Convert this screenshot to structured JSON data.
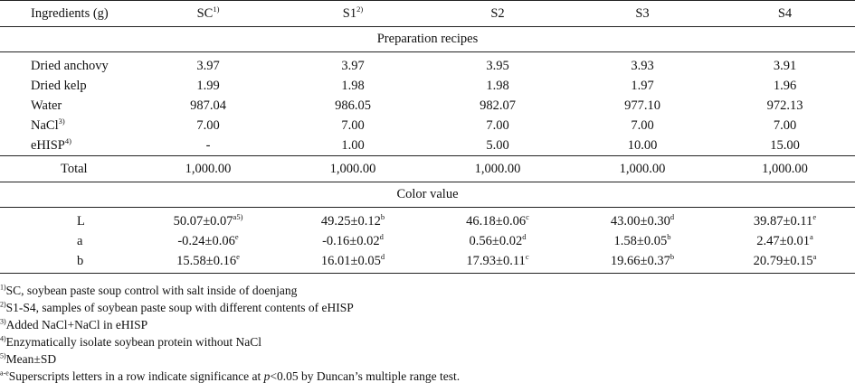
{
  "table": {
    "header": {
      "col0": "Ingredients (g)",
      "cols": [
        {
          "label": "SC",
          "sup": "1)"
        },
        {
          "label": "S1",
          "sup": "2)"
        },
        {
          "label": "S2",
          "sup": ""
        },
        {
          "label": "S3",
          "sup": ""
        },
        {
          "label": "S4",
          "sup": ""
        }
      ]
    },
    "section_recipes": "Preparation recipes",
    "recipes": [
      {
        "name": "Dried anchovy",
        "sup": "",
        "values": [
          "3.97",
          "3.97",
          "3.95",
          "3.93",
          "3.91"
        ]
      },
      {
        "name": "Dried kelp",
        "sup": "",
        "values": [
          "1.99",
          "1.98",
          "1.98",
          "1.97",
          "1.96"
        ]
      },
      {
        "name": "Water",
        "sup": "",
        "values": [
          "987.04",
          "986.05",
          "982.07",
          "977.10",
          "972.13"
        ]
      },
      {
        "name": "NaCl",
        "sup": "3)",
        "values": [
          "7.00",
          "7.00",
          "7.00",
          "7.00",
          "7.00"
        ]
      },
      {
        "name": "eHISP",
        "sup": "4)",
        "values": [
          "-",
          "1.00",
          "5.00",
          "10.00",
          "15.00"
        ]
      }
    ],
    "total": {
      "name": "Total",
      "values": [
        "1,000.00",
        "1,000.00",
        "1,000.00",
        "1,000.00",
        "1,000.00"
      ]
    },
    "section_color": "Color value",
    "color": [
      {
        "name": "L",
        "values": [
          {
            "v": "50.07±0.07",
            "s": "a5)"
          },
          {
            "v": "49.25±0.12",
            "s": "b"
          },
          {
            "v": "46.18±0.06",
            "s": "c"
          },
          {
            "v": "43.00±0.30",
            "s": "d"
          },
          {
            "v": "39.87±0.11",
            "s": "e"
          }
        ]
      },
      {
        "name": "a",
        "values": [
          {
            "v": "-0.24±0.06",
            "s": "e"
          },
          {
            "v": "-0.16±0.02",
            "s": "d"
          },
          {
            "v": "0.56±0.02",
            "s": "d"
          },
          {
            "v": "1.58±0.05",
            "s": "b"
          },
          {
            "v": "2.47±0.01",
            "s": "a"
          }
        ]
      },
      {
        "name": "b",
        "values": [
          {
            "v": "15.58±0.16",
            "s": "e"
          },
          {
            "v": "16.01±0.05",
            "s": "d"
          },
          {
            "v": "17.93±0.11",
            "s": "c"
          },
          {
            "v": "19.66±0.37",
            "s": "b"
          },
          {
            "v": "20.79±0.15",
            "s": "a"
          }
        ]
      }
    ]
  },
  "footnotes": [
    {
      "mark": "1)",
      "text": "SC, soybean paste soup control with salt inside of doenjang"
    },
    {
      "mark": "2)",
      "text": "S1-S4, samples of soybean paste soup with different contents of eHISP"
    },
    {
      "mark": "3)",
      "text": "Added NaCl+NaCl in eHISP"
    },
    {
      "mark": "4)",
      "text": "Enzymatically isolate soybean protein without NaCl"
    },
    {
      "mark": "5)",
      "text": "Mean±SD"
    }
  ],
  "footnote_last": {
    "mark": "a-e",
    "pre": "Superscripts letters in a row indicate significance at ",
    "p": "p",
    "post": "<0.05 by Duncan’s multiple range test."
  }
}
